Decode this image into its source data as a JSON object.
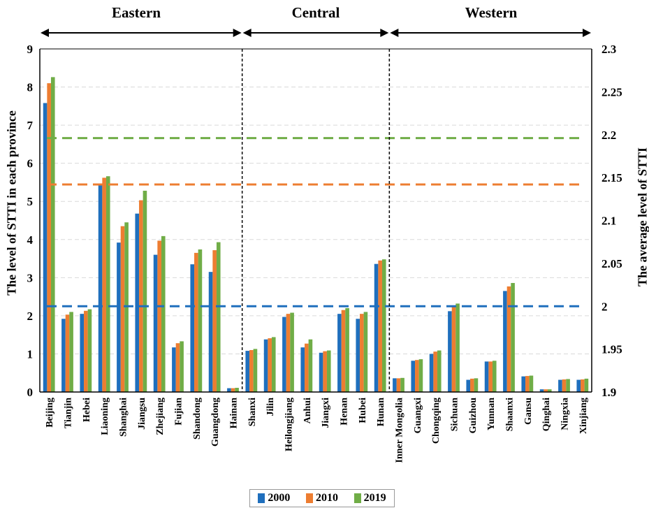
{
  "regions": [
    {
      "name": "Eastern"
    },
    {
      "name": "Central"
    },
    {
      "name": "Western"
    }
  ],
  "colors": {
    "2000": "#1f6fbd",
    "2010": "#ed7d31",
    "2019": "#70ad47"
  },
  "chart_data": {
    "type": "bar",
    "title": "",
    "ylabel": "The level of STTI in each province",
    "y2label": "The average level of STTI",
    "ylim": [
      0,
      9
    ],
    "y_ticks": [
      0,
      1,
      2,
      3,
      4,
      5,
      6,
      7,
      8,
      9
    ],
    "y2lim": [
      1.9,
      2.3
    ],
    "y2_ticks": [
      "1.9",
      "1.95",
      "2",
      "2.05",
      "2.1",
      "2.15",
      "2.2",
      "2.25",
      "2.3"
    ],
    "legend_position": "bottom",
    "grid": true,
    "categories": [
      "Beijing",
      "Tianjin",
      "Hebei",
      "Liaoning",
      "Shanghai",
      "Jiangsu",
      "Zhejiang",
      "Fujian",
      "Shandong",
      "Guangdong",
      "Hainan",
      "Shanxi",
      "Jilin",
      "Heilongjiang",
      "Anhui",
      "Jiangxi",
      "Henan",
      "Hubei",
      "Hunan",
      "Inner Mongolia",
      "Guangxi",
      "Chongqing",
      "Sichuan",
      "Guizhou",
      "Yunnan",
      "Shaanxi",
      "Gansu",
      "Qinghai",
      "Ningxia",
      "Xinjiang"
    ],
    "region_groups": [
      {
        "region": "Eastern",
        "count": 11
      },
      {
        "region": "Central",
        "count": 8
      },
      {
        "region": "Western",
        "count": 11
      }
    ],
    "series": [
      {
        "name": "2000",
        "axis": "left",
        "values": [
          7.58,
          1.92,
          2.05,
          5.42,
          3.92,
          4.68,
          3.6,
          1.17,
          3.35,
          3.15,
          0.1,
          1.08,
          1.38,
          1.97,
          1.17,
          1.03,
          2.05,
          1.92,
          3.36,
          0.36,
          0.82,
          1.0,
          2.12,
          0.32,
          0.8,
          2.65,
          0.41,
          0.07,
          0.32,
          0.32
        ]
      },
      {
        "name": "2010",
        "axis": "left",
        "values": [
          8.1,
          2.03,
          2.13,
          5.62,
          4.35,
          5.03,
          3.97,
          1.28,
          3.65,
          3.72,
          0.1,
          1.1,
          1.41,
          2.05,
          1.27,
          1.07,
          2.15,
          2.05,
          3.45,
          0.36,
          0.84,
          1.06,
          2.25,
          0.35,
          0.8,
          2.77,
          0.42,
          0.07,
          0.33,
          0.33
        ]
      },
      {
        "name": "2019",
        "axis": "left",
        "values": [
          8.26,
          2.1,
          2.17,
          5.66,
          4.45,
          5.28,
          4.09,
          1.33,
          3.74,
          3.93,
          0.11,
          1.13,
          1.44,
          2.08,
          1.38,
          1.09,
          2.2,
          2.1,
          3.48,
          0.37,
          0.86,
          1.09,
          2.32,
          0.36,
          0.82,
          2.86,
          0.43,
          0.07,
          0.34,
          0.35
        ]
      }
    ],
    "averages": [
      {
        "name": "2000",
        "axis": "right",
        "value": 2.0
      },
      {
        "name": "2010",
        "axis": "right",
        "value": 2.142
      },
      {
        "name": "2019",
        "axis": "right",
        "value": 2.196
      }
    ]
  }
}
